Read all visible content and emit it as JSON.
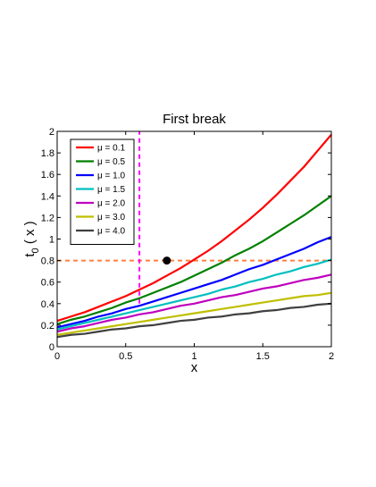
{
  "chart_data": {
    "type": "line",
    "title": "First break",
    "xlabel": "x",
    "ylabel": "t",
    "ylabel_sub": "0",
    "ylabel_suffix": "( x )",
    "xlim": [
      0,
      2
    ],
    "ylim": [
      0,
      2
    ],
    "xticks": [
      0,
      0.5,
      1,
      1.5,
      2
    ],
    "xtick_labels": [
      "0",
      "0.5",
      "1",
      "1.5",
      "2"
    ],
    "yticks": [
      0,
      0.2,
      0.4,
      0.6,
      0.8,
      1,
      1.2,
      1.4,
      1.6,
      1.8,
      2
    ],
    "ytick_labels": [
      "0",
      "0.2",
      "0.4",
      "0.6",
      "0.8",
      "1",
      "1.2",
      "1.4",
      "1.6",
      "1.8",
      "2"
    ],
    "grid": false,
    "legend_position": "top-left",
    "x": [
      0,
      0.1,
      0.2,
      0.3,
      0.4,
      0.5,
      0.6,
      0.7,
      0.8,
      0.9,
      1.0,
      1.1,
      1.2,
      1.3,
      1.4,
      1.5,
      1.6,
      1.7,
      1.8,
      1.9,
      2.0
    ],
    "series": [
      {
        "name": "μ = 0.1",
        "color": "#ff0000",
        "values": [
          0.24,
          0.28,
          0.32,
          0.37,
          0.42,
          0.47,
          0.53,
          0.59,
          0.66,
          0.73,
          0.81,
          0.89,
          0.98,
          1.08,
          1.18,
          1.29,
          1.41,
          1.54,
          1.67,
          1.82,
          1.97
        ]
      },
      {
        "name": "μ = 0.5",
        "color": "#008000",
        "values": [
          0.21,
          0.25,
          0.28,
          0.32,
          0.36,
          0.41,
          0.45,
          0.5,
          0.55,
          0.6,
          0.66,
          0.72,
          0.78,
          0.85,
          0.91,
          0.98,
          1.06,
          1.14,
          1.22,
          1.31,
          1.4
        ]
      },
      {
        "name": "μ = 1.0",
        "color": "#0000ff",
        "values": [
          0.18,
          0.21,
          0.24,
          0.28,
          0.31,
          0.35,
          0.38,
          0.42,
          0.46,
          0.5,
          0.54,
          0.58,
          0.62,
          0.67,
          0.72,
          0.76,
          0.81,
          0.86,
          0.91,
          0.97,
          1.02
        ]
      },
      {
        "name": "μ = 1.5",
        "color": "#00bfbf",
        "values": [
          0.16,
          0.19,
          0.22,
          0.25,
          0.28,
          0.31,
          0.34,
          0.37,
          0.4,
          0.43,
          0.46,
          0.49,
          0.53,
          0.56,
          0.6,
          0.63,
          0.67,
          0.7,
          0.74,
          0.77,
          0.81
        ]
      },
      {
        "name": "μ = 2.0",
        "color": "#bf00bf",
        "values": [
          0.14,
          0.17,
          0.19,
          0.22,
          0.25,
          0.27,
          0.3,
          0.32,
          0.35,
          0.38,
          0.4,
          0.43,
          0.46,
          0.48,
          0.51,
          0.54,
          0.56,
          0.59,
          0.62,
          0.64,
          0.67
        ]
      },
      {
        "name": "μ = 3.0",
        "color": "#bfbf00",
        "values": [
          0.11,
          0.13,
          0.15,
          0.17,
          0.19,
          0.21,
          0.23,
          0.25,
          0.27,
          0.29,
          0.31,
          0.33,
          0.35,
          0.37,
          0.39,
          0.41,
          0.43,
          0.45,
          0.47,
          0.48,
          0.5
        ]
      },
      {
        "name": "μ = 4.0",
        "color": "#404040",
        "values": [
          0.09,
          0.11,
          0.12,
          0.14,
          0.16,
          0.17,
          0.19,
          0.2,
          0.22,
          0.24,
          0.25,
          0.27,
          0.28,
          0.3,
          0.31,
          0.33,
          0.34,
          0.36,
          0.37,
          0.39,
          0.4
        ]
      }
    ],
    "reference_lines": [
      {
        "orientation": "horizontal",
        "value": 0.8,
        "color": "#ff8040",
        "style": "dashed"
      },
      {
        "orientation": "vertical",
        "value": 0.6,
        "ymin": 0.4,
        "ymax": 2.0,
        "color": "#ff00ff",
        "style": "dashed"
      }
    ],
    "marker": {
      "x": 0.8,
      "y": 0.8,
      "color": "#000000"
    }
  }
}
